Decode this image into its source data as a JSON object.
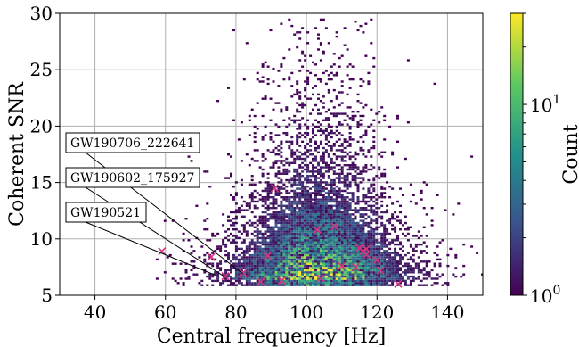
{
  "chart_data": {
    "type": "heatmap",
    "xlabel": "Central frequency [Hz]",
    "ylabel": "Coherent SNR",
    "colorbar_label": "Count",
    "xlim": [
      30,
      150
    ],
    "ylim": [
      5,
      30
    ],
    "x_ticks": [
      "40",
      "60",
      "80",
      "100",
      "120",
      "140"
    ],
    "x_tick_values": [
      40,
      60,
      80,
      100,
      120,
      140
    ],
    "y_ticks": [
      "5",
      "10",
      "15",
      "20",
      "25",
      "30"
    ],
    "y_tick_values": [
      5,
      10,
      15,
      20,
      25,
      30
    ],
    "colorbar_scale": "log",
    "colorbar_range": [
      1,
      30
    ],
    "colorbar_ticks": [
      {
        "base": "10",
        "exp": "0",
        "value": 1
      },
      {
        "base": "10",
        "exp": "1",
        "value": 10
      }
    ],
    "colormap": "viridis",
    "colormap_colors": [
      "#440154",
      "#3b528b",
      "#21918c",
      "#5ec962",
      "#fde725"
    ],
    "grid": true,
    "background_distribution": {
      "x_range": [
        55,
        150
      ],
      "y_range": [
        5.8,
        29.5
      ],
      "peak_x": 103,
      "peak_y": 6.8
    },
    "event_marker": "x",
    "event_color": "#d6357c",
    "events": [
      {
        "x": 59,
        "y": 8.9
      },
      {
        "x": 73,
        "y": 8.4
      },
      {
        "x": 77,
        "y": 6.7
      },
      {
        "x": 82,
        "y": 7.0
      },
      {
        "x": 87,
        "y": 6.2
      },
      {
        "x": 89,
        "y": 8.5
      },
      {
        "x": 91,
        "y": 14.5
      },
      {
        "x": 93,
        "y": 6.3
      },
      {
        "x": 103,
        "y": 10.8
      },
      {
        "x": 104,
        "y": 6.5
      },
      {
        "x": 108,
        "y": 11.1
      },
      {
        "x": 110,
        "y": 7.6
      },
      {
        "x": 114,
        "y": 7.5
      },
      {
        "x": 115,
        "y": 9.2
      },
      {
        "x": 116,
        "y": 8.9
      },
      {
        "x": 117,
        "y": 9.1
      },
      {
        "x": 117,
        "y": 8.6
      },
      {
        "x": 120,
        "y": 8.1
      },
      {
        "x": 121,
        "y": 7.2
      },
      {
        "x": 126,
        "y": 6.0
      }
    ],
    "annotations": [
      {
        "text": "GW190706_222641",
        "target_x": 82,
        "target_y": 6.9
      },
      {
        "text": "GW190602_175927",
        "target_x": 77,
        "target_y": 6.6
      },
      {
        "text": "GW190521",
        "target_x": 74,
        "target_y": 6.8
      }
    ]
  }
}
